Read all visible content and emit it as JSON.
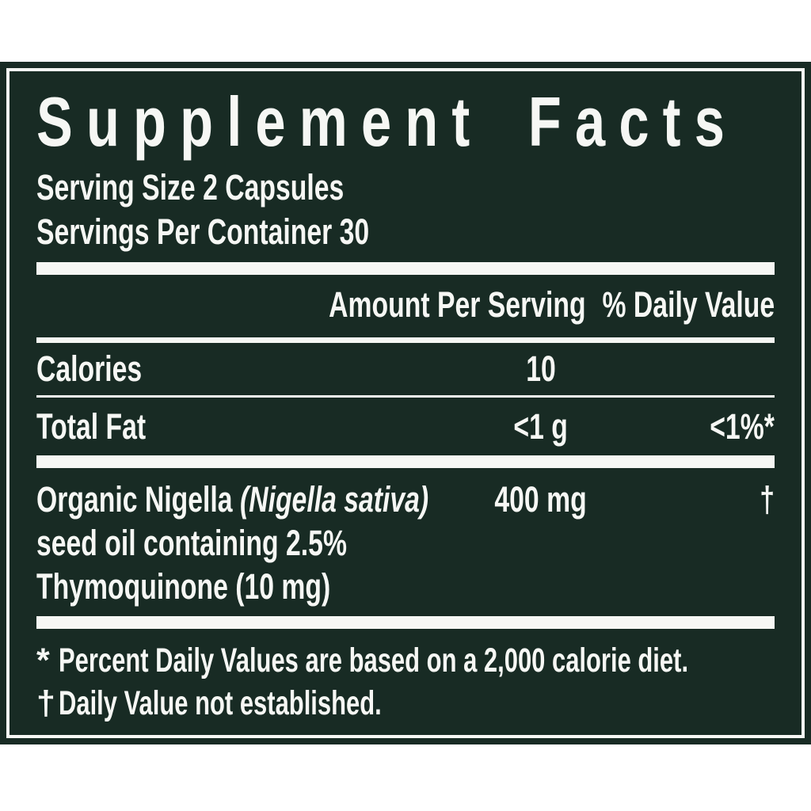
{
  "label": {
    "title": "Supplement Facts",
    "serving_size": "Serving Size 2 Capsules",
    "servings_per_container": "Servings Per Container 30",
    "columns": {
      "amount_header": "Amount Per Serving",
      "daily_value_header": "% Daily Value"
    },
    "rows": [
      {
        "name": "Calories",
        "amount": "10",
        "daily_value": ""
      },
      {
        "name": "Total Fat",
        "amount": "<1 g",
        "daily_value": "<1%*"
      },
      {
        "name_part_normal": "Organic Nigella ",
        "name_part_italic": "(Nigella sativa)",
        "name_line_2": "seed oil containing 2.5%",
        "name_line_3": "Thymoquinone (10 mg)",
        "amount": "400 mg",
        "daily_value": "†"
      }
    ],
    "footnotes": [
      {
        "symbol": "*",
        "text": "Percent Daily Values are based on a 2,000 calorie diet."
      },
      {
        "symbol": "†",
        "text": "Daily Value not established."
      }
    ]
  },
  "colors": {
    "panel_bg": "#182b24",
    "ink": "#f6f7f4",
    "page_bg": "#ffffff"
  }
}
